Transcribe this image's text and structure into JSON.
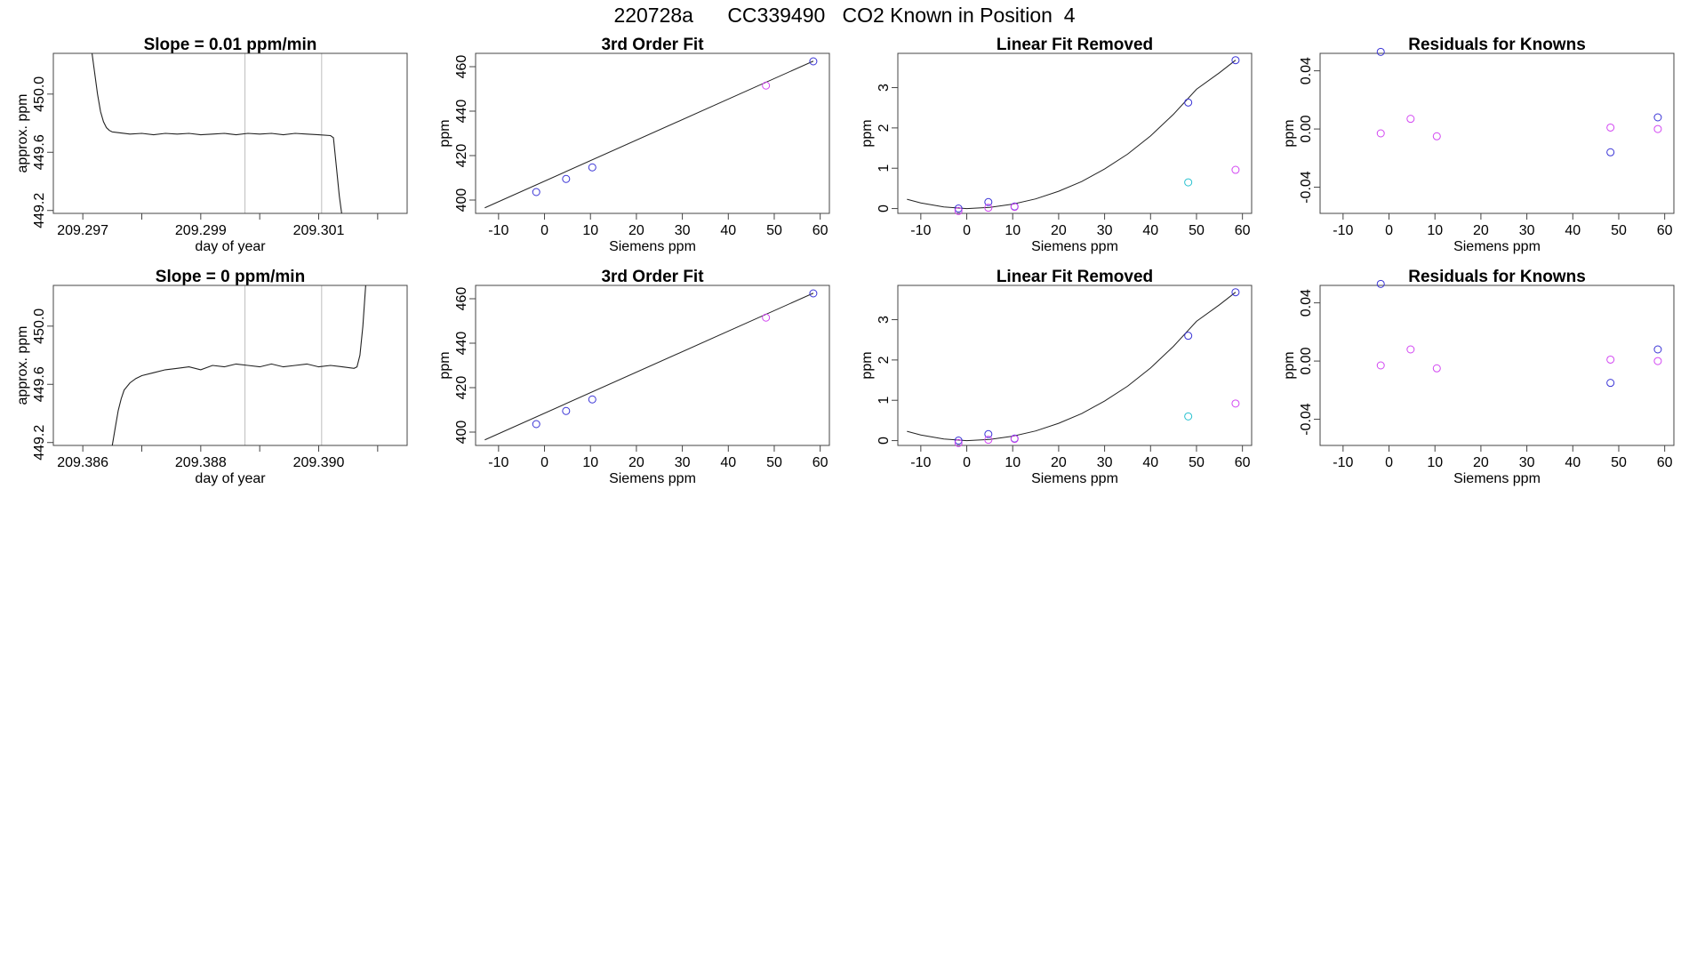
{
  "figure": {
    "title": "220728a      CC339490   CO2 Known in Position  4"
  },
  "colors": {
    "blue": "#3a34d6",
    "magenta": "#d246f2",
    "cyan": "#27c1cf",
    "line": "#222222",
    "vline": "#bdbdbd"
  },
  "chart_data": [
    {
      "type": "line",
      "title": "Slope =  0.01  ppm/min",
      "xlabel": "day of year",
      "ylabel": "approx. ppm",
      "xlim": [
        209.2965,
        209.3025
      ],
      "ylim": [
        449.18,
        450.28
      ],
      "xticks": [
        209.297,
        209.298,
        209.299,
        209.3,
        209.301,
        209.302
      ],
      "xtick_labels": [
        "209.297",
        "",
        "209.299",
        "",
        "209.301",
        ""
      ],
      "yticks": [
        449.2,
        449.6,
        450.0
      ],
      "ytick_labels": [
        "449.2",
        "449.6",
        "450.0"
      ],
      "vlines": [
        209.29975,
        209.30105
      ],
      "series": [
        {
          "name": "trace",
          "x": [
            209.29715,
            209.2972,
            209.29725,
            209.2973,
            209.29735,
            209.2974,
            209.29745,
            209.2975,
            209.2976,
            209.2978,
            209.298,
            209.2982,
            209.2984,
            209.2986,
            209.2988,
            209.299,
            209.2992,
            209.2994,
            209.2996,
            209.2998,
            209.3,
            209.3002,
            209.3004,
            209.3006,
            209.3008,
            209.301,
            209.3012,
            209.30125,
            209.3013,
            209.30135,
            209.3014
          ],
          "y": [
            450.3,
            450.15,
            450.0,
            449.88,
            449.81,
            449.77,
            449.75,
            449.74,
            449.735,
            449.725,
            449.73,
            449.72,
            449.73,
            449.725,
            449.73,
            449.72,
            449.725,
            449.73,
            449.72,
            449.73,
            449.725,
            449.73,
            449.72,
            449.73,
            449.725,
            449.72,
            449.715,
            449.7,
            449.5,
            449.3,
            449.15
          ]
        }
      ]
    },
    {
      "type": "scatter",
      "title": "3rd Order Fit",
      "xlabel": "Siemens ppm",
      "ylabel": "ppm",
      "xlim": [
        -15,
        62
      ],
      "ylim": [
        394,
        466
      ],
      "xticks": [
        -10,
        0,
        10,
        20,
        30,
        40,
        50,
        60
      ],
      "xtick_labels": [
        "-10",
        "0",
        "10",
        "20",
        "30",
        "40",
        "50",
        "60"
      ],
      "yticks": [
        400,
        420,
        440,
        460
      ],
      "ytick_labels": [
        "400",
        "420",
        "440",
        "460"
      ],
      "fit_line": {
        "x": [
          -13,
          58.5
        ],
        "y": [
          396.5,
          462.5
        ]
      },
      "points": [
        {
          "x": -1.8,
          "y": 403.6,
          "color": "blue"
        },
        {
          "x": 4.7,
          "y": 409.5,
          "color": "blue"
        },
        {
          "x": 10.4,
          "y": 414.7,
          "color": "blue"
        },
        {
          "x": 48.2,
          "y": 451.5,
          "color": "magenta"
        },
        {
          "x": 58.5,
          "y": 462.4,
          "color": "blue"
        }
      ]
    },
    {
      "type": "scatter",
      "title": "Linear Fit Removed",
      "xlabel": "Siemens ppm",
      "ylabel": "ppm",
      "xlim": [
        -15,
        62
      ],
      "ylim": [
        -0.12,
        3.85
      ],
      "xticks": [
        -10,
        0,
        10,
        20,
        30,
        40,
        50,
        60
      ],
      "xtick_labels": [
        "-10",
        "0",
        "10",
        "20",
        "30",
        "40",
        "50",
        "60"
      ],
      "yticks": [
        0,
        1,
        2,
        3
      ],
      "ytick_labels": [
        "0",
        "1",
        "2",
        "3"
      ],
      "curve": {
        "x": [
          -13,
          -10,
          -5,
          0,
          5,
          10,
          15,
          20,
          25,
          30,
          35,
          40,
          45,
          50,
          55,
          58.5
        ],
        "y": [
          0.23,
          0.14,
          0.04,
          0.0,
          0.03,
          0.11,
          0.24,
          0.43,
          0.67,
          0.98,
          1.35,
          1.8,
          2.34,
          2.96,
          3.37,
          3.68
        ]
      },
      "points": [
        {
          "x": -1.8,
          "y": 0.0,
          "color": "blue"
        },
        {
          "x": -1.8,
          "y": -0.06,
          "color": "magenta"
        },
        {
          "x": 4.7,
          "y": 0.16,
          "color": "blue"
        },
        {
          "x": 4.7,
          "y": 0.02,
          "color": "magenta"
        },
        {
          "x": 10.4,
          "y": 0.05,
          "color": "blue"
        },
        {
          "x": 10.4,
          "y": 0.04,
          "color": "magenta"
        },
        {
          "x": 48.2,
          "y": 2.63,
          "color": "blue"
        },
        {
          "x": 48.2,
          "y": 0.65,
          "color": "cyan"
        },
        {
          "x": 58.5,
          "y": 3.68,
          "color": "blue"
        },
        {
          "x": 58.5,
          "y": 0.96,
          "color": "magenta"
        }
      ]
    },
    {
      "type": "scatter",
      "title": "Residuals for Knowns",
      "xlabel": "Siemens ppm",
      "ylabel": "ppm",
      "xlim": [
        -15,
        62
      ],
      "ylim": [
        -0.058,
        0.052
      ],
      "xticks": [
        -10,
        0,
        10,
        20,
        30,
        40,
        50,
        60
      ],
      "xtick_labels": [
        "-10",
        "0",
        "10",
        "20",
        "30",
        "40",
        "50",
        "60"
      ],
      "yticks": [
        -0.04,
        0.0,
        0.04
      ],
      "ytick_labels": [
        "-0.04",
        "0.00",
        "0.04"
      ],
      "points": [
        {
          "x": -1.8,
          "y": 0.053,
          "color": "blue"
        },
        {
          "x": -1.8,
          "y": -0.003,
          "color": "magenta"
        },
        {
          "x": 4.7,
          "y": 0.007,
          "color": "magenta"
        },
        {
          "x": 10.4,
          "y": -0.005,
          "color": "magenta"
        },
        {
          "x": 48.2,
          "y": 0.001,
          "color": "magenta"
        },
        {
          "x": 48.2,
          "y": -0.016,
          "color": "blue"
        },
        {
          "x": 58.5,
          "y": 0.008,
          "color": "blue"
        },
        {
          "x": 58.5,
          "y": 0.0,
          "color": "magenta"
        }
      ]
    },
    {
      "type": "line",
      "title": "Slope =  0  ppm/min",
      "xlabel": "day of year",
      "ylabel": "approx. ppm",
      "xlim": [
        209.3855,
        209.3915
      ],
      "ylim": [
        449.18,
        450.28
      ],
      "xticks": [
        209.386,
        209.387,
        209.388,
        209.389,
        209.39,
        209.391
      ],
      "xtick_labels": [
        "209.386",
        "",
        "209.388",
        "",
        "209.390",
        ""
      ],
      "yticks": [
        449.2,
        449.6,
        450.0
      ],
      "ytick_labels": [
        "449.2",
        "449.6",
        "450.0"
      ],
      "vlines": [
        209.38875,
        209.39005
      ],
      "series": [
        {
          "name": "trace",
          "x": [
            209.3865,
            209.38655,
            209.3866,
            209.38665,
            209.3867,
            209.3868,
            209.3869,
            209.387,
            209.3872,
            209.3874,
            209.3876,
            209.3878,
            209.388,
            209.3882,
            209.3884,
            209.3886,
            209.3888,
            209.389,
            209.3892,
            209.3894,
            209.3896,
            209.3898,
            209.39,
            209.3902,
            209.3904,
            209.3906,
            209.39065,
            209.3907,
            209.39075,
            209.3908
          ],
          "y": [
            449.18,
            449.3,
            449.42,
            449.5,
            449.56,
            449.61,
            449.64,
            449.66,
            449.68,
            449.7,
            449.71,
            449.72,
            449.7,
            449.73,
            449.72,
            449.74,
            449.73,
            449.72,
            449.74,
            449.72,
            449.73,
            449.74,
            449.72,
            449.73,
            449.72,
            449.71,
            449.72,
            449.8,
            450.0,
            450.3
          ]
        }
      ]
    },
    {
      "type": "scatter",
      "title": "3rd Order Fit",
      "xlabel": "Siemens ppm",
      "ylabel": "ppm",
      "xlim": [
        -15,
        62
      ],
      "ylim": [
        394,
        466
      ],
      "xticks": [
        -10,
        0,
        10,
        20,
        30,
        40,
        50,
        60
      ],
      "xtick_labels": [
        "-10",
        "0",
        "10",
        "20",
        "30",
        "40",
        "50",
        "60"
      ],
      "yticks": [
        400,
        420,
        440,
        460
      ],
      "ytick_labels": [
        "400",
        "420",
        "440",
        "460"
      ],
      "fit_line": {
        "x": [
          -13,
          58.5
        ],
        "y": [
          396.5,
          462.5
        ]
      },
      "points": [
        {
          "x": -1.8,
          "y": 403.6,
          "color": "blue"
        },
        {
          "x": 4.7,
          "y": 409.5,
          "color": "blue"
        },
        {
          "x": 10.4,
          "y": 414.7,
          "color": "blue"
        },
        {
          "x": 48.2,
          "y": 451.5,
          "color": "magenta"
        },
        {
          "x": 58.5,
          "y": 462.4,
          "color": "blue"
        }
      ]
    },
    {
      "type": "scatter",
      "title": "Linear Fit Removed",
      "xlabel": "Siemens ppm",
      "ylabel": "ppm",
      "xlim": [
        -15,
        62
      ],
      "ylim": [
        -0.12,
        3.85
      ],
      "xticks": [
        -10,
        0,
        10,
        20,
        30,
        40,
        50,
        60
      ],
      "xtick_labels": [
        "-10",
        "0",
        "10",
        "20",
        "30",
        "40",
        "50",
        "60"
      ],
      "yticks": [
        0,
        1,
        2,
        3
      ],
      "ytick_labels": [
        "0",
        "1",
        "2",
        "3"
      ],
      "curve": {
        "x": [
          -13,
          -10,
          -5,
          0,
          5,
          10,
          15,
          20,
          25,
          30,
          35,
          40,
          45,
          50,
          55,
          58.5
        ],
        "y": [
          0.23,
          0.14,
          0.04,
          0.0,
          0.03,
          0.11,
          0.24,
          0.43,
          0.67,
          0.98,
          1.35,
          1.8,
          2.34,
          2.96,
          3.37,
          3.68
        ]
      },
      "points": [
        {
          "x": -1.8,
          "y": 0.0,
          "color": "blue"
        },
        {
          "x": -1.8,
          "y": -0.06,
          "color": "magenta"
        },
        {
          "x": 4.7,
          "y": 0.16,
          "color": "blue"
        },
        {
          "x": 4.7,
          "y": 0.02,
          "color": "magenta"
        },
        {
          "x": 10.4,
          "y": 0.05,
          "color": "blue"
        },
        {
          "x": 10.4,
          "y": 0.04,
          "color": "magenta"
        },
        {
          "x": 48.2,
          "y": 2.6,
          "color": "blue"
        },
        {
          "x": 48.2,
          "y": 0.6,
          "color": "cyan"
        },
        {
          "x": 58.5,
          "y": 3.68,
          "color": "blue"
        },
        {
          "x": 58.5,
          "y": 0.92,
          "color": "magenta"
        }
      ]
    },
    {
      "type": "scatter",
      "title": "Residuals for Knowns",
      "xlabel": "Siemens ppm",
      "ylabel": "ppm",
      "xlim": [
        -15,
        62
      ],
      "ylim": [
        -0.058,
        0.052
      ],
      "xticks": [
        -10,
        0,
        10,
        20,
        30,
        40,
        50,
        60
      ],
      "xtick_labels": [
        "-10",
        "0",
        "10",
        "20",
        "30",
        "40",
        "50",
        "60"
      ],
      "yticks": [
        -0.04,
        0.0,
        0.04
      ],
      "ytick_labels": [
        "-0.04",
        "0.00",
        "0.04"
      ],
      "points": [
        {
          "x": -1.8,
          "y": 0.053,
          "color": "blue"
        },
        {
          "x": -1.8,
          "y": -0.003,
          "color": "magenta"
        },
        {
          "x": 4.7,
          "y": 0.008,
          "color": "magenta"
        },
        {
          "x": 10.4,
          "y": -0.005,
          "color": "magenta"
        },
        {
          "x": 48.2,
          "y": 0.001,
          "color": "magenta"
        },
        {
          "x": 48.2,
          "y": -0.015,
          "color": "blue"
        },
        {
          "x": 58.5,
          "y": 0.008,
          "color": "blue"
        },
        {
          "x": 58.5,
          "y": 0.0,
          "color": "magenta"
        }
      ]
    }
  ]
}
